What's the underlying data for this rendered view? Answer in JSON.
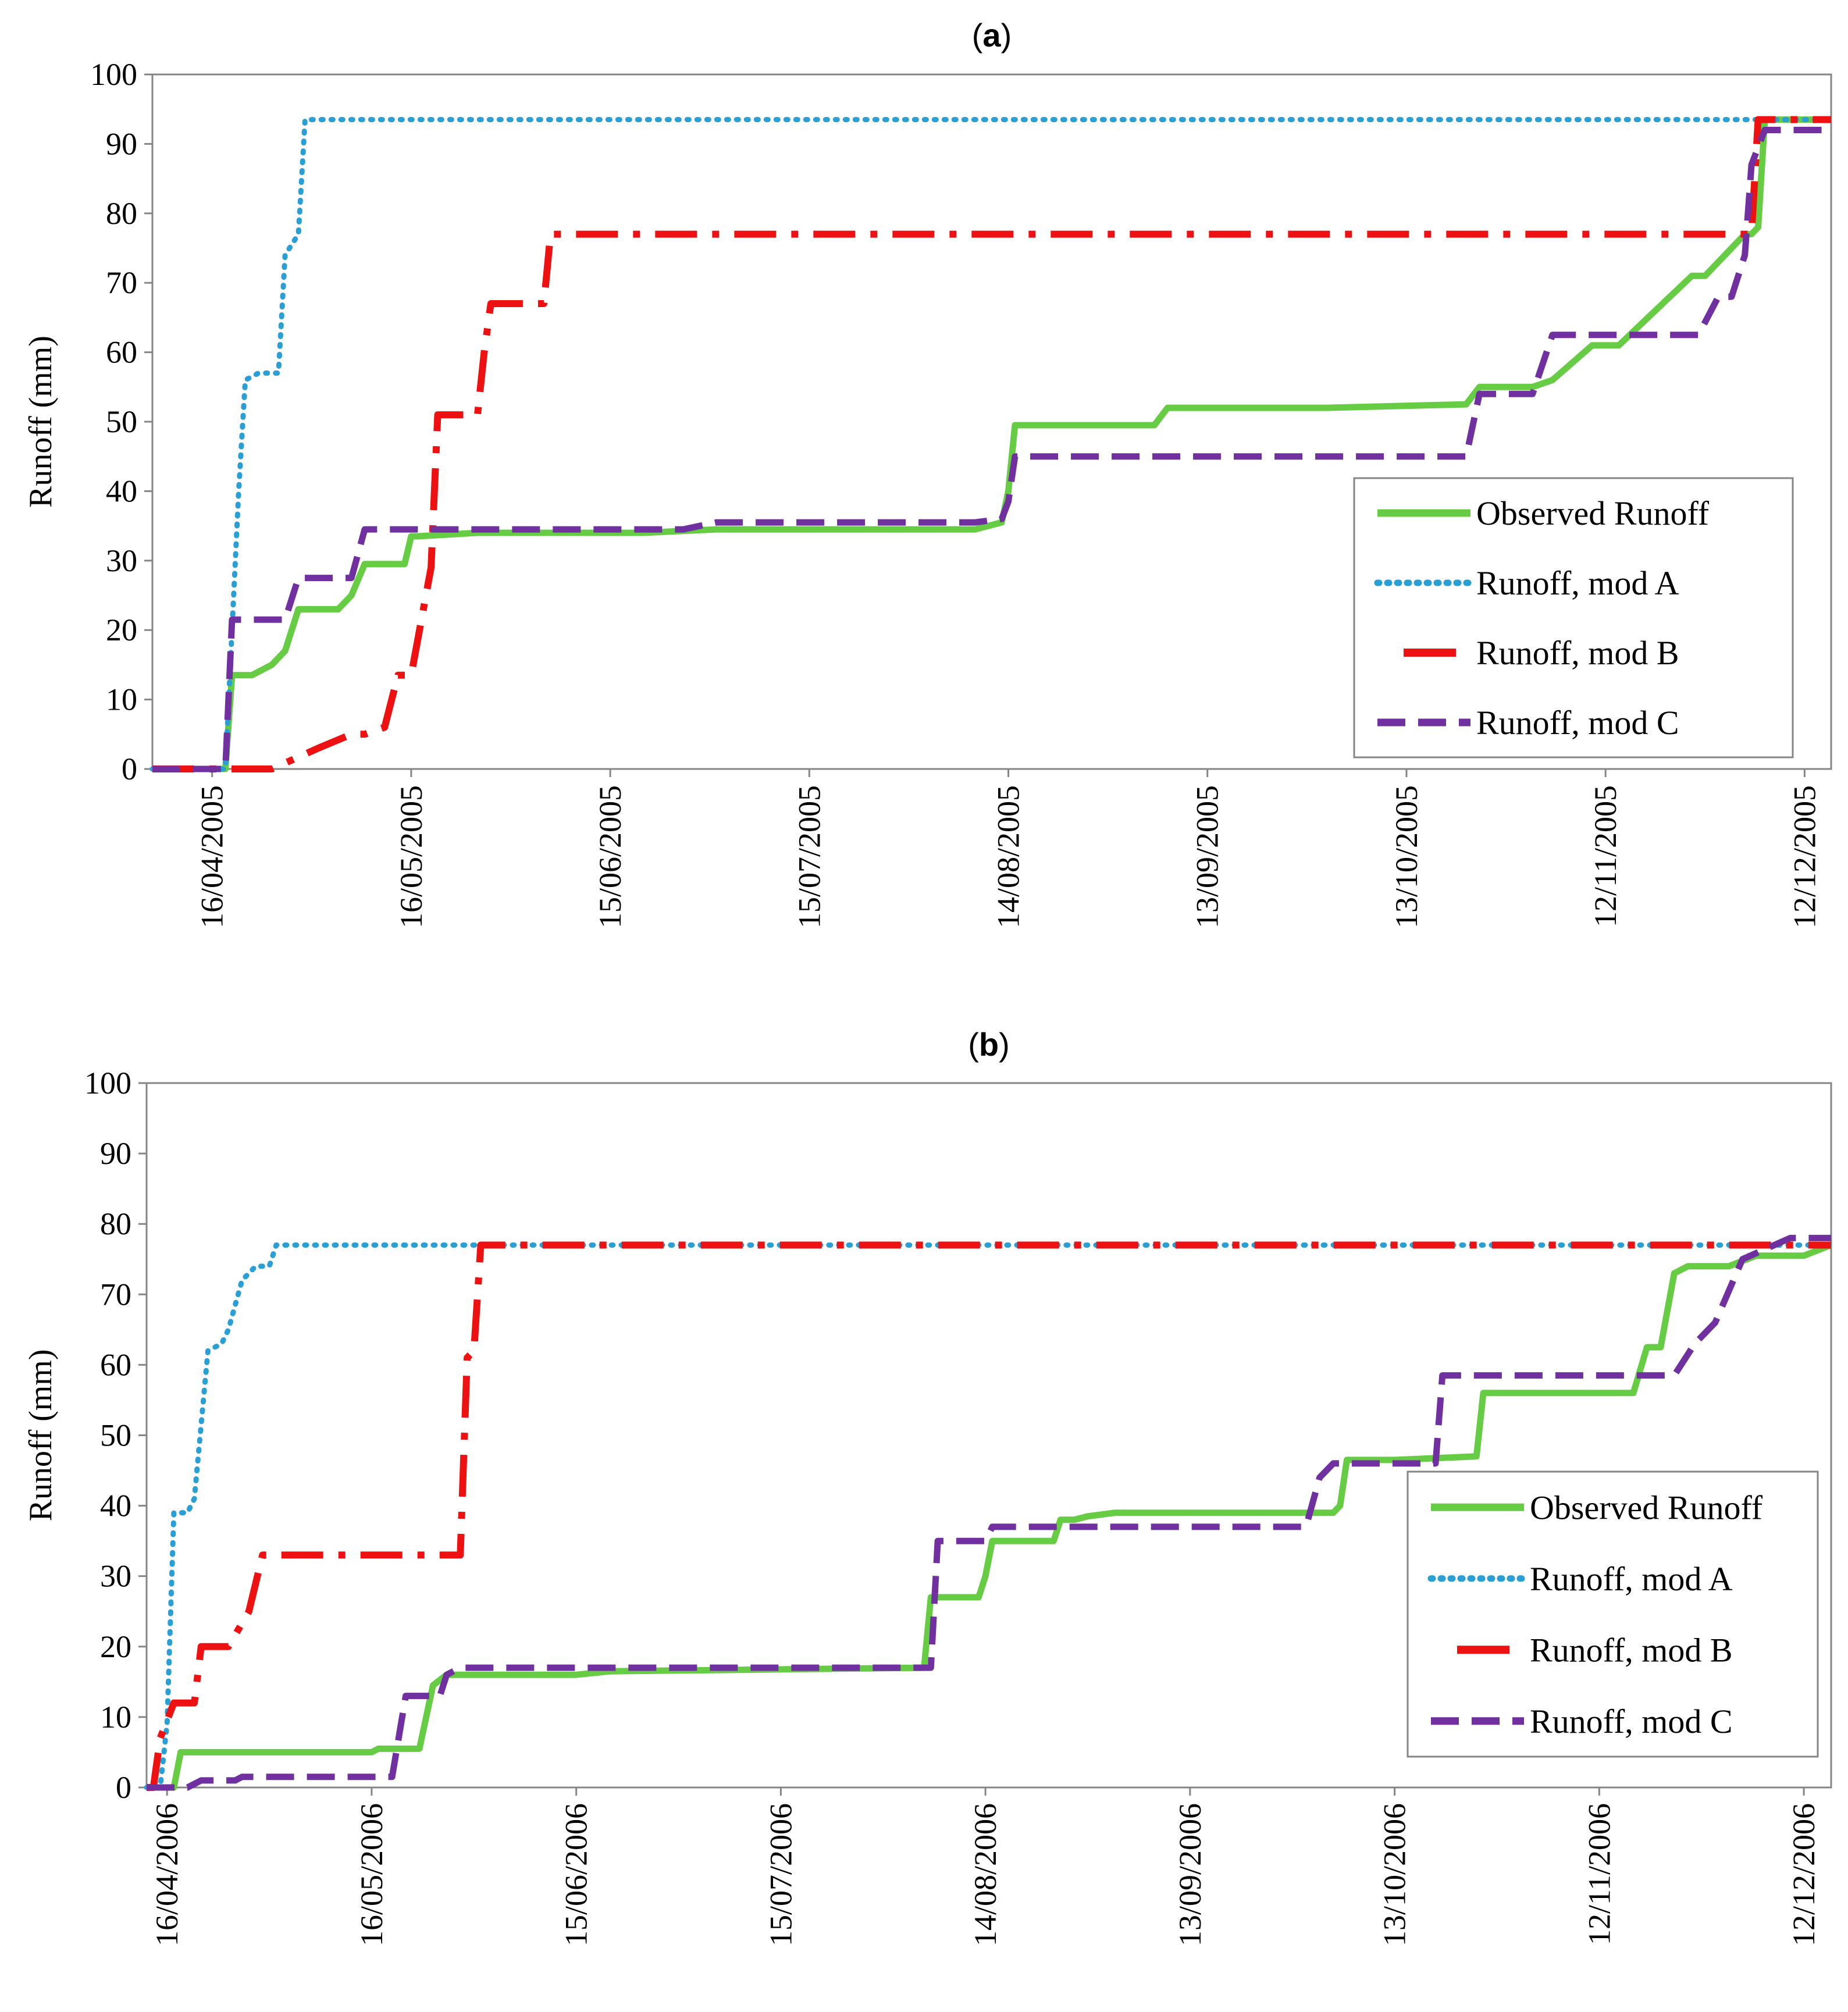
{
  "chart_data": [
    {
      "type": "line",
      "title": "a",
      "ylabel": "Runoff (mm)",
      "xlabel": "",
      "ylim": [
        0,
        100
      ],
      "yticks": [
        0,
        10,
        20,
        30,
        40,
        50,
        60,
        70,
        80,
        90,
        100
      ],
      "xlim": [
        "2005-04-07",
        "2005-12-16"
      ],
      "xtick_dates": [
        "2005-04-16",
        "2005-05-16",
        "2005-06-15",
        "2005-07-15",
        "2005-08-14",
        "2005-09-13",
        "2005-10-13",
        "2005-11-12",
        "2005-12-12"
      ],
      "xtick_labels": [
        "16/04/2005",
        "16/05/2005",
        "15/06/2005",
        "15/07/2005",
        "14/08/2005",
        "13/09/2005",
        "13/10/2005",
        "12/11/2005",
        "12/12/2005"
      ],
      "grid": false,
      "legend_position": "bottom-right",
      "series": [
        {
          "name": "Observed Runoff",
          "color": "#66cc44",
          "style": "solid",
          "x": [
            "2005-04-07",
            "2005-04-18",
            "2005-04-19",
            "2005-04-20",
            "2005-04-22",
            "2005-04-25",
            "2005-04-27",
            "2005-04-29",
            "2005-05-05",
            "2005-05-07",
            "2005-05-09",
            "2005-05-15",
            "2005-05-16",
            "2005-05-17",
            "2005-05-26",
            "2005-06-20",
            "2005-07-01",
            "2005-08-09",
            "2005-08-13",
            "2005-08-14",
            "2005-08-15",
            "2005-08-27",
            "2005-09-05",
            "2005-09-07",
            "2005-10-01",
            "2005-10-22",
            "2005-10-24",
            "2005-11-01",
            "2005-11-04",
            "2005-11-10",
            "2005-11-12",
            "2005-11-14",
            "2005-11-25",
            "2005-11-27",
            "2005-12-01",
            "2005-12-03",
            "2005-12-04",
            "2005-12-05",
            "2005-12-06",
            "2005-12-16"
          ],
          "y": [
            0,
            0,
            13.5,
            13.5,
            13.5,
            15,
            17,
            23,
            23,
            25,
            29.5,
            29.5,
            33.5,
            33.5,
            34,
            34,
            34.5,
            34.5,
            35.5,
            40,
            49.5,
            49.5,
            49.5,
            52,
            52,
            52.5,
            55,
            55,
            56,
            61,
            61,
            61,
            71,
            71,
            75,
            77,
            77,
            78,
            93.5,
            93.5
          ]
        },
        {
          "name": "Runoff, mod A",
          "color": "#2a9fd6",
          "style": "dotted",
          "x": [
            "2005-04-07",
            "2005-04-18",
            "2005-04-19",
            "2005-04-20",
            "2005-04-21",
            "2005-04-23",
            "2005-04-26",
            "2005-04-27",
            "2005-04-29",
            "2005-04-30",
            "2005-12-16"
          ],
          "y": [
            0,
            0,
            20,
            40,
            56,
            57,
            57,
            74,
            77,
            93.5,
            93.5
          ]
        },
        {
          "name": "Runoff, mod B",
          "color": "#ee1111",
          "style": "dashdot",
          "x": [
            "2005-04-07",
            "2005-04-25",
            "2005-05-02",
            "2005-05-07",
            "2005-05-09",
            "2005-05-12",
            "2005-05-14",
            "2005-05-16",
            "2005-05-19",
            "2005-05-20",
            "2005-05-22",
            "2005-05-26",
            "2005-05-27",
            "2005-05-28",
            "2005-06-01",
            "2005-06-05",
            "2005-06-06",
            "2005-12-04",
            "2005-12-05",
            "2005-12-16"
          ],
          "y": [
            0,
            0,
            3,
            5,
            5,
            6,
            13.5,
            13.5,
            29,
            51,
            51,
            51,
            60,
            67,
            67,
            67,
            77,
            77,
            93.5,
            93.5
          ]
        },
        {
          "name": "Runoff, mod C",
          "color": "#7030a0",
          "style": "dashed",
          "x": [
            "2005-04-07",
            "2005-04-18",
            "2005-04-19",
            "2005-04-27",
            "2005-04-29",
            "2005-05-07",
            "2005-05-09",
            "2005-06-26",
            "2005-07-01",
            "2005-08-09",
            "2005-08-13",
            "2005-08-14",
            "2005-08-15",
            "2005-10-22",
            "2005-10-24",
            "2005-11-01",
            "2005-11-04",
            "2005-11-26",
            "2005-11-29",
            "2005-12-01",
            "2005-12-03",
            "2005-12-04",
            "2005-12-06",
            "2005-12-16"
          ],
          "y": [
            0,
            0,
            21.5,
            21.5,
            27.5,
            27.5,
            34.5,
            34.5,
            35.5,
            35.5,
            36,
            38.5,
            45,
            45,
            54,
            54,
            62.5,
            62.5,
            68,
            68,
            74,
            87,
            92,
            92
          ]
        }
      ]
    },
    {
      "type": "line",
      "title": "b",
      "ylabel": "Runoff (mm)",
      "xlabel": "",
      "ylim": [
        0,
        100
      ],
      "yticks": [
        0,
        10,
        20,
        30,
        40,
        50,
        60,
        70,
        80,
        90,
        100
      ],
      "xlim": [
        "2006-04-13",
        "2006-12-16"
      ],
      "xtick_dates": [
        "2006-04-16",
        "2006-05-16",
        "2006-06-15",
        "2006-07-15",
        "2006-08-14",
        "2006-09-13",
        "2006-10-13",
        "2006-11-12",
        "2006-12-12"
      ],
      "xtick_labels": [
        "16/04/2006",
        "16/05/2006",
        "15/06/2006",
        "15/07/2006",
        "14/08/2006",
        "13/09/2006",
        "13/10/2006",
        "12/11/2006",
        "12/12/2006"
      ],
      "grid": false,
      "legend_position": "bottom-right",
      "series": [
        {
          "name": "Observed Runoff",
          "color": "#66cc44",
          "style": "solid",
          "x": [
            "2006-04-13",
            "2006-04-17",
            "2006-04-18",
            "2006-05-16",
            "2006-05-17",
            "2006-05-23",
            "2006-05-25",
            "2006-05-27",
            "2006-06-15",
            "2006-06-20",
            "2006-08-05",
            "2006-08-06",
            "2006-08-13",
            "2006-08-14",
            "2006-08-15",
            "2006-08-24",
            "2006-08-25",
            "2006-08-27",
            "2006-08-29",
            "2006-09-02",
            "2006-10-04",
            "2006-10-05",
            "2006-10-06",
            "2006-10-13",
            "2006-10-25",
            "2006-10-26",
            "2006-11-17",
            "2006-11-19",
            "2006-11-21",
            "2006-11-23",
            "2006-11-25",
            "2006-12-01",
            "2006-12-05",
            "2006-12-12",
            "2006-12-16"
          ],
          "y": [
            0,
            0,
            5,
            5,
            5.5,
            5.5,
            14.5,
            16,
            16,
            16.5,
            17,
            27,
            27,
            30,
            35,
            35,
            38,
            38,
            38.5,
            39,
            39,
            40,
            46.5,
            46.5,
            47,
            56,
            56,
            62.5,
            62.5,
            73,
            74,
            74,
            75.5,
            75.5,
            77
          ]
        },
        {
          "name": "Runoff, mod A",
          "color": "#2a9fd6",
          "style": "dotted",
          "x": [
            "2006-04-13",
            "2006-04-15",
            "2006-04-16",
            "2006-04-17",
            "2006-04-19",
            "2006-04-20",
            "2006-04-22",
            "2006-04-24",
            "2006-04-25",
            "2006-04-27",
            "2006-04-29",
            "2006-05-01",
            "2006-05-02",
            "2006-05-04",
            "2006-12-16"
          ],
          "y": [
            0,
            0,
            9,
            39,
            39,
            41,
            62,
            63,
            65,
            72,
            74,
            74,
            77,
            77,
            77
          ]
        },
        {
          "name": "Runoff, mod B",
          "color": "#ee1111",
          "style": "dashdot",
          "x": [
            "2006-04-13",
            "2006-04-14",
            "2006-04-15",
            "2006-04-17",
            "2006-04-20",
            "2006-04-21",
            "2006-04-25",
            "2006-04-28",
            "2006-04-30",
            "2006-05-25",
            "2006-05-29",
            "2006-05-30",
            "2006-05-31",
            "2006-06-01",
            "2006-12-16"
          ],
          "y": [
            0,
            0,
            7,
            12,
            12,
            20,
            20,
            25,
            33,
            33,
            33,
            61,
            62,
            77,
            77
          ]
        },
        {
          "name": "Runoff, mod C",
          "color": "#7030a0",
          "style": "dashed",
          "x": [
            "2006-04-13",
            "2006-04-18",
            "2006-04-19",
            "2006-04-21",
            "2006-04-26",
            "2006-04-27",
            "2006-05-19",
            "2006-05-21",
            "2006-05-26",
            "2006-05-27",
            "2006-05-29",
            "2006-08-06",
            "2006-08-07",
            "2006-08-14",
            "2006-08-15",
            "2006-09-30",
            "2006-10-02",
            "2006-10-04",
            "2006-10-19",
            "2006-10-20",
            "2006-11-19",
            "2006-11-21",
            "2006-11-23",
            "2006-11-26",
            "2006-11-29",
            "2006-12-03",
            "2006-12-10",
            "2006-12-16"
          ],
          "y": [
            0,
            0,
            0,
            1,
            1,
            1.5,
            1.5,
            13,
            13,
            16,
            17,
            17,
            35,
            35,
            37,
            37,
            44,
            46,
            46,
            58.5,
            58.5,
            58.5,
            58.5,
            63,
            66,
            75,
            78,
            78
          ]
        }
      ]
    }
  ],
  "colors": {
    "observed": "#66cc44",
    "mod_a": "#2a9fd6",
    "mod_b": "#ee1111",
    "mod_c": "#7030a0",
    "axis": "#868686"
  }
}
